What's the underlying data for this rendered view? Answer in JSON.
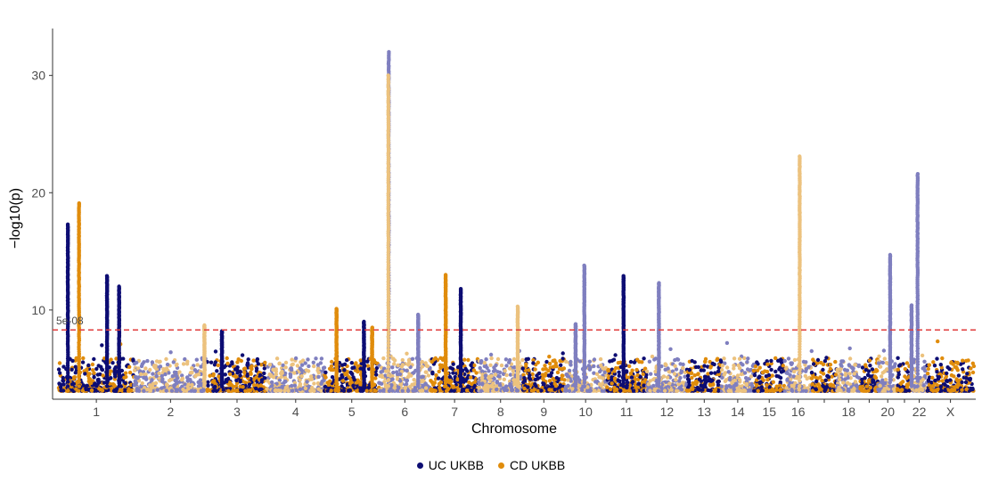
{
  "chart_data": {
    "type": "scatter",
    "subtype": "manhattan",
    "title": "",
    "xlabel": "Chromosome",
    "ylabel": "−log10(p)",
    "ylim": [
      3,
      34
    ],
    "yticks": [
      10,
      20,
      30
    ],
    "threshold": {
      "value": 8.3,
      "label": "5e-08",
      "color": "#e03c3c",
      "style": "dashed"
    },
    "grid": false,
    "legend_position": "bottom",
    "chromosomes": [
      {
        "label": "1",
        "start": 0,
        "length": 249
      },
      {
        "label": "2",
        "start": 249,
        "length": 243
      },
      {
        "label": "3",
        "start": 492,
        "length": 198
      },
      {
        "label": "4",
        "start": 690,
        "length": 191
      },
      {
        "label": "5",
        "start": 881,
        "length": 181
      },
      {
        "label": "6",
        "start": 1062,
        "length": 171
      },
      {
        "label": "7",
        "start": 1233,
        "length": 159
      },
      {
        "label": "8",
        "start": 1392,
        "length": 146
      },
      {
        "label": "9",
        "start": 1538,
        "length": 141
      },
      {
        "label": "10",
        "start": 1679,
        "length": 136
      },
      {
        "label": "11",
        "start": 1815,
        "length": 135
      },
      {
        "label": "12",
        "start": 1950,
        "length": 133
      },
      {
        "label": "13",
        "start": 2083,
        "length": 115
      },
      {
        "label": "14",
        "start": 2198,
        "length": 107
      },
      {
        "label": "15",
        "start": 2305,
        "length": 102
      },
      {
        "label": "16",
        "start": 2407,
        "length": 90
      },
      {
        "label": "",
        "start": 2497,
        "length": 83
      },
      {
        "label": "18",
        "start": 2580,
        "length": 78
      },
      {
        "label": "",
        "start": 2658,
        "length": 59
      },
      {
        "label": "20",
        "start": 2717,
        "length": 64
      },
      {
        "label": "",
        "start": 2781,
        "length": 47
      },
      {
        "label": "22",
        "start": 2828,
        "length": 51
      },
      {
        "label": "X",
        "start": 2879,
        "length": 156
      }
    ],
    "series": [
      {
        "name": "UC UKBB",
        "color": "#0d0d73",
        "light_color": "#7f7fbf"
      },
      {
        "name": "CD UKBB",
        "color": "#e08c0c",
        "light_color": "#ecc27e"
      }
    ],
    "peaks": [
      {
        "chrom": "1",
        "pos": 30,
        "series": 0,
        "max": 17.3
      },
      {
        "chrom": "1",
        "pos": 67,
        "series": 1,
        "max": 19.1
      },
      {
        "chrom": "1",
        "pos": 160,
        "series": 0,
        "max": 12.9
      },
      {
        "chrom": "1",
        "pos": 200,
        "series": 0,
        "max": 12.0
      },
      {
        "chrom": "2",
        "pos": 234,
        "series": 1,
        "max": 8.7
      },
      {
        "chrom": "3",
        "pos": 49,
        "series": 0,
        "max": 8.2
      },
      {
        "chrom": "5",
        "pos": 40,
        "series": 1,
        "max": 10.1
      },
      {
        "chrom": "5",
        "pos": 131,
        "series": 0,
        "max": 9.0
      },
      {
        "chrom": "5",
        "pos": 158,
        "series": 1,
        "max": 8.5
      },
      {
        "chrom": "6",
        "pos": 32,
        "series": 0,
        "max": 32.0
      },
      {
        "chrom": "6",
        "pos": 31,
        "series": 1,
        "max": 30.0
      },
      {
        "chrom": "6",
        "pos": 130,
        "series": 0,
        "max": 9.6
      },
      {
        "chrom": "7",
        "pos": 50,
        "series": 1,
        "max": 13.0
      },
      {
        "chrom": "7",
        "pos": 100,
        "series": 0,
        "max": 11.8
      },
      {
        "chrom": "8",
        "pos": 130,
        "series": 1,
        "max": 10.3
      },
      {
        "chrom": "10",
        "pos": 35,
        "series": 0,
        "max": 8.8
      },
      {
        "chrom": "10",
        "pos": 64,
        "series": 0,
        "max": 13.8
      },
      {
        "chrom": "11",
        "pos": 58,
        "series": 0,
        "max": 12.9
      },
      {
        "chrom": "12",
        "pos": 40,
        "series": 0,
        "max": 12.3
      },
      {
        "chrom": "16",
        "pos": 50,
        "series": 1,
        "max": 23.1
      },
      {
        "chrom": "20",
        "pos": 40,
        "series": 0,
        "max": 14.7
      },
      {
        "chrom": "22",
        "pos": 0,
        "series": 0,
        "max": 10.4
      },
      {
        "chrom": "22",
        "pos": 20,
        "series": 0,
        "max": 21.6
      }
    ]
  }
}
